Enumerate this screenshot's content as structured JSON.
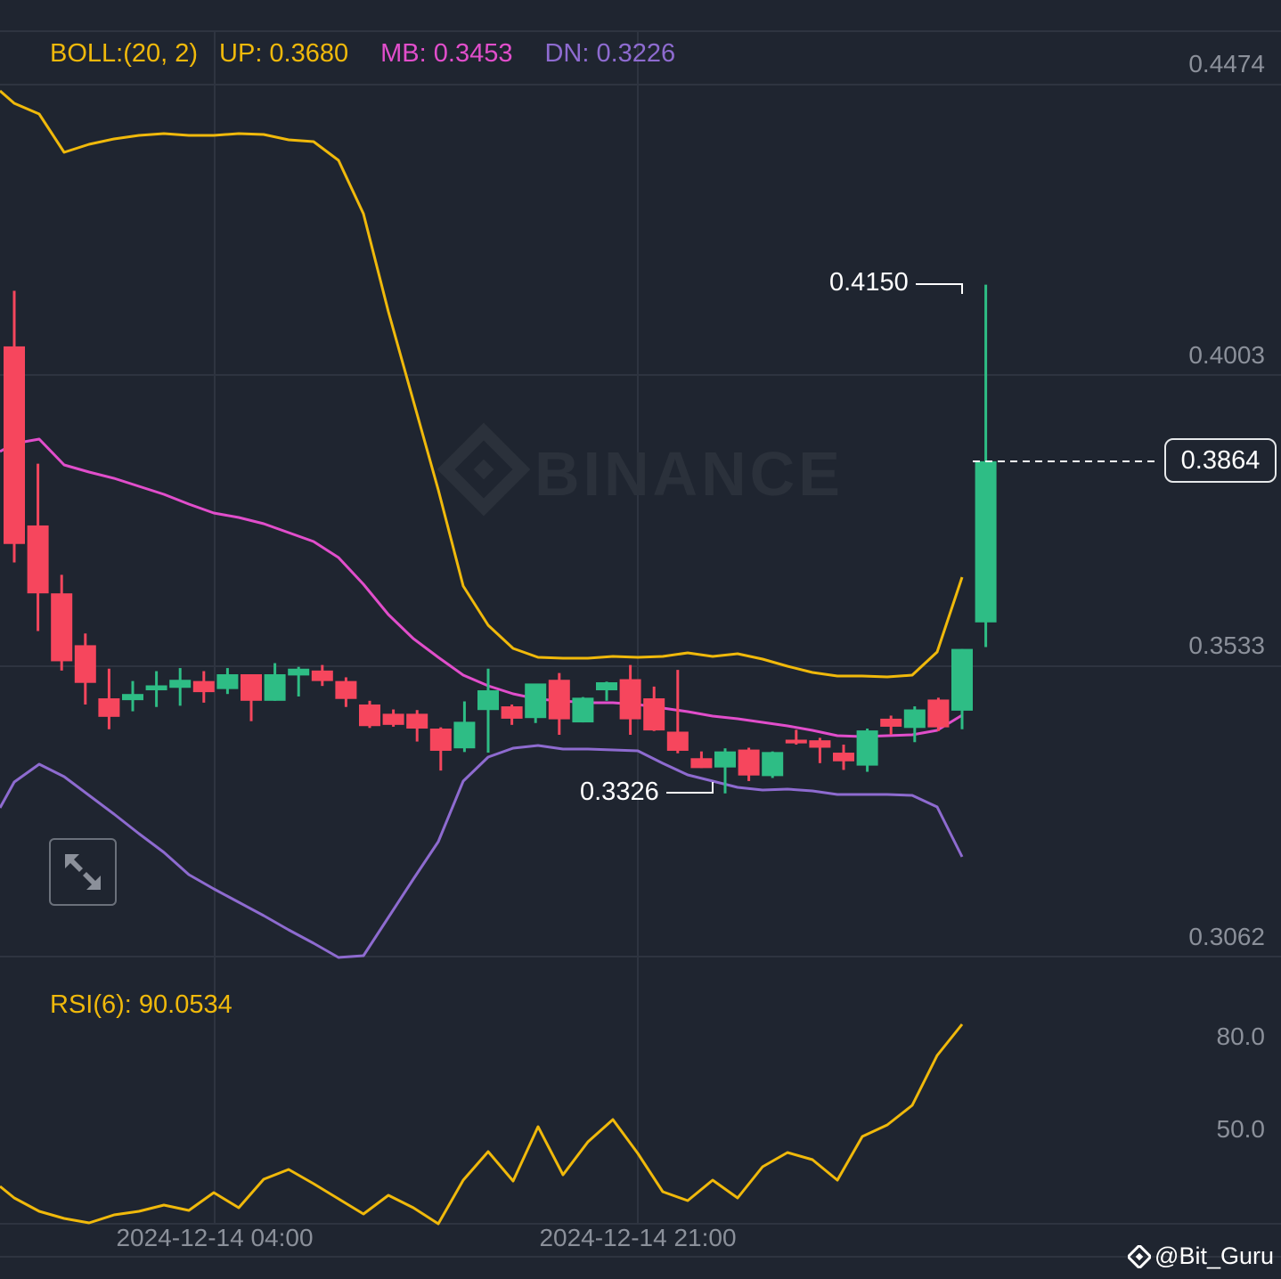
{
  "legend": {
    "boll": "BOLL:(20, 2)",
    "up": "UP: 0.3680",
    "mb": "MB: 0.3453",
    "dn": "DN: 0.3226"
  },
  "rsi_legend": "RSI(6): 90.0534",
  "price_axis": [
    "0.4474",
    "0.4003",
    "0.3533",
    "0.3062"
  ],
  "rsi_axis": [
    "80.0",
    "50.0"
  ],
  "time_axis": [
    "2024-12-14 04:00",
    "2024-12-14 21:00"
  ],
  "last_price": "0.3864",
  "high_label": "0.4150",
  "low_label": "0.3326",
  "watermark": "BINANCE",
  "credit": "@Bit_Guru",
  "colors": {
    "background": "#1f2530",
    "up": "#2ebd85",
    "down": "#f6465d",
    "boll_up": "#f0b90b",
    "boll_mb": "#e14ecb",
    "boll_dn": "#8e6bd0",
    "rsi": "#f0b90b",
    "grid": "#2e3440",
    "axis_text": "#8b909a"
  },
  "chart_data": [
    {
      "type": "candlestick",
      "title": "BOLL:(20, 2)",
      "y_ticks": [
        0.4474,
        0.4003,
        0.3533,
        0.3062
      ],
      "ylim": [
        0.299,
        0.455
      ],
      "x_ticks": [
        "2024-12-14 04:00",
        "2024-12-14 21:00"
      ],
      "last_price": 0.3864,
      "high_marker": 0.415,
      "low_marker": 0.3326,
      "candles": [
        {
          "o": 0.405,
          "h": 0.414,
          "l": 0.37,
          "c": 0.373
        },
        {
          "o": 0.376,
          "h": 0.386,
          "l": 0.3589,
          "c": 0.365
        },
        {
          "o": 0.365,
          "h": 0.368,
          "l": 0.3525,
          "c": 0.354
        },
        {
          "o": 0.3566,
          "h": 0.3585,
          "l": 0.347,
          "c": 0.3505
        },
        {
          "o": 0.348,
          "h": 0.3528,
          "l": 0.343,
          "c": 0.345
        },
        {
          "o": 0.3477,
          "h": 0.3508,
          "l": 0.3459,
          "c": 0.3487
        },
        {
          "o": 0.3493,
          "h": 0.3524,
          "l": 0.3466,
          "c": 0.3501
        },
        {
          "o": 0.3497,
          "h": 0.3529,
          "l": 0.3468,
          "c": 0.351
        },
        {
          "o": 0.3508,
          "h": 0.3524,
          "l": 0.3473,
          "c": 0.349
        },
        {
          "o": 0.3495,
          "h": 0.3529,
          "l": 0.3487,
          "c": 0.3519
        },
        {
          "o": 0.3519,
          "h": 0.3519,
          "l": 0.3443,
          "c": 0.3476
        },
        {
          "o": 0.3476,
          "h": 0.3537,
          "l": 0.3476,
          "c": 0.3519
        },
        {
          "o": 0.3517,
          "h": 0.3531,
          "l": 0.3483,
          "c": 0.3528
        },
        {
          "o": 0.3525,
          "h": 0.3534,
          "l": 0.35,
          "c": 0.3508
        },
        {
          "o": 0.3508,
          "h": 0.3514,
          "l": 0.3466,
          "c": 0.3479
        },
        {
          "o": 0.347,
          "h": 0.3476,
          "l": 0.3432,
          "c": 0.3435
        },
        {
          "o": 0.3455,
          "h": 0.3462,
          "l": 0.3434,
          "c": 0.3437
        },
        {
          "o": 0.3455,
          "h": 0.3461,
          "l": 0.341,
          "c": 0.3431
        },
        {
          "o": 0.3431,
          "h": 0.3433,
          "l": 0.3363,
          "c": 0.3395
        },
        {
          "o": 0.3399,
          "h": 0.3475,
          "l": 0.3393,
          "c": 0.3442
        },
        {
          "o": 0.3461,
          "h": 0.3528,
          "l": 0.3392,
          "c": 0.3493
        },
        {
          "o": 0.3467,
          "h": 0.347,
          "l": 0.3437,
          "c": 0.3447
        },
        {
          "o": 0.3448,
          "h": 0.3485,
          "l": 0.344,
          "c": 0.3504
        },
        {
          "o": 0.351,
          "h": 0.3521,
          "l": 0.3421,
          "c": 0.3446
        },
        {
          "o": 0.3441,
          "h": 0.3482,
          "l": 0.3441,
          "c": 0.3481
        },
        {
          "o": 0.3493,
          "h": 0.3507,
          "l": 0.3476,
          "c": 0.3506
        },
        {
          "o": 0.3511,
          "h": 0.3534,
          "l": 0.3421,
          "c": 0.3446
        },
        {
          "o": 0.348,
          "h": 0.3499,
          "l": 0.3427,
          "c": 0.3428
        },
        {
          "o": 0.3426,
          "h": 0.3526,
          "l": 0.3391,
          "c": 0.3395
        },
        {
          "o": 0.3383,
          "h": 0.3394,
          "l": 0.3367,
          "c": 0.3367
        },
        {
          "o": 0.3368,
          "h": 0.3399,
          "l": 0.3326,
          "c": 0.3394
        },
        {
          "o": 0.3397,
          "h": 0.34,
          "l": 0.3346,
          "c": 0.3355
        },
        {
          "o": 0.3354,
          "h": 0.3394,
          "l": 0.3351,
          "c": 0.3393
        },
        {
          "o": 0.3413,
          "h": 0.3429,
          "l": 0.3405,
          "c": 0.3407
        },
        {
          "o": 0.3412,
          "h": 0.3416,
          "l": 0.3375,
          "c": 0.34
        },
        {
          "o": 0.3392,
          "h": 0.3405,
          "l": 0.3364,
          "c": 0.3378
        },
        {
          "o": 0.3371,
          "h": 0.3431,
          "l": 0.3361,
          "c": 0.3428
        },
        {
          "o": 0.3447,
          "h": 0.3452,
          "l": 0.3421,
          "c": 0.3434
        },
        {
          "o": 0.3432,
          "h": 0.3467,
          "l": 0.3409,
          "c": 0.3462
        },
        {
          "o": 0.3478,
          "h": 0.3481,
          "l": 0.3427,
          "c": 0.3433
        },
        {
          "o": 0.346,
          "h": 0.356,
          "l": 0.343,
          "c": 0.356
        },
        {
          "o": 0.3603,
          "h": 0.415,
          "l": 0.3563,
          "c": 0.3864
        }
      ],
      "series": [
        {
          "name": "UP",
          "color": "#f0b90b",
          "last": 0.368
        },
        {
          "name": "MB",
          "color": "#e14ecb",
          "last": 0.3453
        },
        {
          "name": "DN",
          "color": "#8e6bd0",
          "last": 0.3226
        }
      ]
    },
    {
      "type": "line",
      "title": "RSI(6): 90.0534",
      "y_ticks": [
        80.0,
        50.0
      ],
      "series": [
        {
          "name": "RSI(6)",
          "color": "#f0b90b",
          "values": [
            33,
            31,
            29,
            28,
            27,
            28,
            29,
            30,
            29,
            32,
            29,
            35,
            37,
            34,
            31,
            28,
            32,
            30,
            26,
            34,
            41,
            37,
            45,
            39,
            43,
            48,
            43,
            35,
            33,
            36,
            33,
            38,
            40,
            38,
            35,
            42,
            44,
            46,
            51,
            66,
            75,
            90.05
          ]
        }
      ]
    }
  ]
}
